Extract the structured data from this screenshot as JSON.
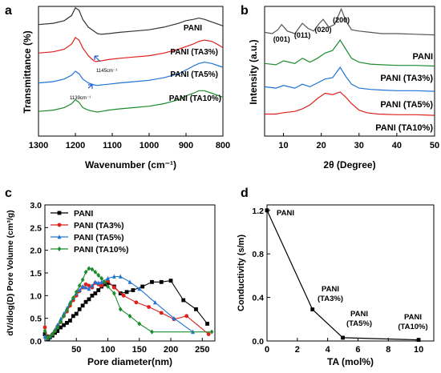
{
  "chart_data": [
    {
      "panel": "a",
      "type": "line",
      "title": "",
      "xlabel": "Wavenumber (cm⁻¹)",
      "ylabel": "Transmittance (%)",
      "xlim": [
        1300,
        800
      ],
      "x_ticks": [
        "1300",
        "1200",
        "1100",
        "1000",
        "900",
        "800"
      ],
      "series": [
        {
          "name": "PANI",
          "color": "#333333",
          "x": [
            1300,
            1260,
            1230,
            1210,
            1200,
            1190,
            1180,
            1165,
            1150,
            1140,
            1130,
            1110,
            1080,
            1040,
            1000,
            960,
            920,
            900,
            880,
            865,
            850,
            830,
            810,
            800
          ],
          "y": [
            0.86,
            0.87,
            0.89,
            0.93,
            0.99,
            0.97,
            0.9,
            0.84,
            0.81,
            0.79,
            0.785,
            0.79,
            0.8,
            0.81,
            0.82,
            0.84,
            0.87,
            0.89,
            0.9,
            0.91,
            0.9,
            0.88,
            0.86,
            0.85
          ]
        },
        {
          "name": "PANI (TA3%)",
          "color": "#e0201b",
          "x": [
            1300,
            1260,
            1230,
            1210,
            1200,
            1190,
            1180,
            1165,
            1150,
            1145,
            1130,
            1110,
            1080,
            1040,
            1000,
            960,
            920,
            900,
            880,
            865,
            850,
            830,
            810,
            800
          ],
          "y": [
            0.64,
            0.65,
            0.67,
            0.71,
            0.76,
            0.74,
            0.68,
            0.62,
            0.58,
            0.575,
            0.58,
            0.59,
            0.6,
            0.61,
            0.62,
            0.64,
            0.67,
            0.69,
            0.71,
            0.73,
            0.74,
            0.73,
            0.7,
            0.68
          ]
        },
        {
          "name": "PANI (TA5%)",
          "color": "#1e73d6",
          "x": [
            1300,
            1260,
            1230,
            1210,
            1200,
            1190,
            1180,
            1165,
            1150,
            1139,
            1130,
            1110,
            1080,
            1040,
            1000,
            960,
            920,
            900,
            880,
            865,
            850,
            830,
            810,
            800
          ],
          "y": [
            0.41,
            0.42,
            0.44,
            0.47,
            0.5,
            0.48,
            0.44,
            0.41,
            0.395,
            0.39,
            0.395,
            0.4,
            0.41,
            0.42,
            0.43,
            0.45,
            0.48,
            0.51,
            0.54,
            0.56,
            0.57,
            0.56,
            0.54,
            0.53
          ]
        },
        {
          "name": "PANI (TA10%)",
          "color": "#1e8c2e",
          "x": [
            1300,
            1260,
            1230,
            1210,
            1200,
            1190,
            1180,
            1165,
            1150,
            1140,
            1130,
            1110,
            1080,
            1040,
            1000,
            960,
            920,
            900,
            880,
            865,
            850,
            830,
            810,
            800
          ],
          "y": [
            0.19,
            0.2,
            0.22,
            0.25,
            0.28,
            0.26,
            0.22,
            0.2,
            0.19,
            0.185,
            0.19,
            0.2,
            0.21,
            0.22,
            0.23,
            0.25,
            0.28,
            0.31,
            0.33,
            0.35,
            0.35,
            0.33,
            0.31,
            0.3
          ]
        }
      ],
      "series_labels": [
        "PANI",
        "PANI (TA3%)",
        "PANI (TA5%)",
        "PANI (TA10%)"
      ],
      "annotations": [
        {
          "text": "1145cm⁻¹",
          "x": 1145,
          "y": 0.54
        },
        {
          "text": "1139cm⁻¹",
          "x": 1139,
          "y": 0.33
        }
      ]
    },
    {
      "panel": "b",
      "type": "line",
      "title": "",
      "xlabel": "2θ (Degree)",
      "ylabel": "Intensity (a.u.)",
      "xlim": [
        5,
        50
      ],
      "x_ticks": [
        "10",
        "20",
        "30",
        "40",
        "50"
      ],
      "peak_labels": [
        {
          "text": "(001)",
          "x": 9.5
        },
        {
          "text": "(011)",
          "x": 15
        },
        {
          "text": "(020)",
          "x": 20.5
        },
        {
          "text": "(200)",
          "x": 25.3
        }
      ],
      "series": [
        {
          "name": "PANI",
          "color": "#555555",
          "x": [
            5,
            7,
            8.5,
            9.5,
            11,
            13,
            15,
            16.5,
            18,
            19.5,
            20.5,
            22,
            23.5,
            25.3,
            26.5,
            28,
            30,
            33,
            36,
            40,
            45,
            50
          ],
          "y": [
            0.8,
            0.79,
            0.82,
            0.86,
            0.81,
            0.79,
            0.87,
            0.83,
            0.81,
            0.87,
            0.9,
            0.84,
            0.86,
            0.98,
            0.89,
            0.82,
            0.81,
            0.8,
            0.79,
            0.79,
            0.785,
            0.78
          ]
        },
        {
          "name": "PANI (TA3%)",
          "color": "#1e8c2e",
          "x": [
            5,
            8,
            10,
            13,
            15,
            17,
            19,
            21,
            23,
            25,
            26.5,
            28,
            30,
            33,
            36,
            40,
            45,
            50
          ],
          "y": [
            0.56,
            0.55,
            0.58,
            0.56,
            0.6,
            0.57,
            0.6,
            0.64,
            0.66,
            0.74,
            0.67,
            0.6,
            0.57,
            0.555,
            0.55,
            0.545,
            0.545,
            0.54
          ]
        },
        {
          "name": "PANI (TA5%)",
          "color": "#1e73d6",
          "x": [
            5,
            8,
            10,
            13,
            15,
            17,
            19,
            21,
            23,
            25,
            26.5,
            28,
            30,
            33,
            36,
            40,
            45,
            50
          ],
          "y": [
            0.38,
            0.37,
            0.39,
            0.37,
            0.4,
            0.38,
            0.41,
            0.44,
            0.45,
            0.53,
            0.46,
            0.4,
            0.37,
            0.36,
            0.355,
            0.35,
            0.35,
            0.345
          ]
        },
        {
          "name": "PANI (TA10%)",
          "color": "#e0201b",
          "x": [
            5,
            8,
            10,
            13,
            15,
            17,
            19,
            21,
            23,
            25,
            26.5,
            28,
            30,
            32,
            35,
            40,
            45,
            50
          ],
          "y": [
            0.17,
            0.17,
            0.18,
            0.19,
            0.21,
            0.24,
            0.29,
            0.33,
            0.32,
            0.34,
            0.3,
            0.25,
            0.2,
            0.18,
            0.17,
            0.165,
            0.165,
            0.16
          ]
        }
      ],
      "series_labels": [
        "PANI",
        "PANI (TA3%)",
        "PANI (TA5%)",
        "PANI (TA10%)"
      ]
    },
    {
      "panel": "c",
      "type": "line",
      "title": "",
      "xlabel": "Pore diameter(nm)",
      "ylabel": "dV/dlog(D) Pore Volume (cm³/g)",
      "xlim": [
        0,
        270
      ],
      "ylim": [
        0,
        3.0
      ],
      "x_ticks": [
        "50",
        "100",
        "150",
        "200",
        "250"
      ],
      "y_ticks": [
        "0.0",
        "0.5",
        "1.0",
        "1.5",
        "2.0",
        "2.5",
        "3.0"
      ],
      "legend": "top-left",
      "series": [
        {
          "name": "PANI",
          "color": "#000000",
          "marker": "square",
          "x": [
            0,
            3,
            5,
            8,
            12,
            16,
            20,
            25,
            30,
            35,
            40,
            45,
            50,
            55,
            60,
            65,
            70,
            75,
            80,
            85,
            90,
            95,
            100,
            110,
            120,
            130,
            140,
            155,
            170,
            185,
            200,
            220,
            240,
            258
          ],
          "y": [
            0.15,
            0.1,
            0.05,
            0.08,
            0.12,
            0.18,
            0.22,
            0.3,
            0.35,
            0.4,
            0.45,
            0.55,
            0.6,
            0.7,
            0.78,
            0.86,
            0.92,
            1.0,
            1.05,
            1.12,
            1.2,
            1.25,
            1.28,
            1.2,
            1.05,
            1.08,
            1.12,
            1.2,
            1.3,
            1.3,
            1.33,
            0.9,
            0.7,
            0.38
          ]
        },
        {
          "name": "PANI (TA3%)",
          "color": "#e0201b",
          "marker": "circle",
          "x": [
            0,
            4,
            8,
            12,
            16,
            20,
            25,
            30,
            35,
            40,
            45,
            50,
            55,
            60,
            65,
            70,
            75,
            80,
            85,
            90,
            100,
            110,
            125,
            145,
            165,
            185,
            205,
            225,
            260
          ],
          "y": [
            0.3,
            0.08,
            0.1,
            0.15,
            0.22,
            0.32,
            0.42,
            0.55,
            0.65,
            0.78,
            0.9,
            1.0,
            1.1,
            1.18,
            1.25,
            1.22,
            1.18,
            1.28,
            1.25,
            1.22,
            1.32,
            1.18,
            1.0,
            0.85,
            0.75,
            0.62,
            0.48,
            0.55,
            0.15
          ]
        },
        {
          "name": "PANI (TA5%)",
          "color": "#1e73d6",
          "marker": "triangle",
          "x": [
            0,
            4,
            8,
            12,
            16,
            20,
            25,
            30,
            35,
            40,
            45,
            50,
            55,
            60,
            65,
            70,
            75,
            80,
            85,
            90,
            100,
            110,
            120,
            135,
            150,
            175,
            205,
            235
          ],
          "y": [
            0.1,
            0.06,
            0.1,
            0.16,
            0.25,
            0.35,
            0.48,
            0.6,
            0.72,
            0.85,
            0.95,
            1.05,
            1.12,
            1.2,
            1.18,
            1.15,
            1.22,
            1.3,
            1.28,
            1.3,
            1.38,
            1.42,
            1.42,
            1.3,
            1.15,
            0.85,
            0.5,
            0.2
          ]
        },
        {
          "name": "PANI (TA10%)",
          "color": "#1e8c2e",
          "marker": "diamond",
          "x": [
            0,
            4,
            8,
            12,
            16,
            20,
            25,
            30,
            35,
            40,
            45,
            50,
            55,
            60,
            65,
            70,
            75,
            80,
            85,
            90,
            95,
            100,
            110,
            120,
            135,
            150,
            170,
            265
          ],
          "y": [
            0.22,
            0.06,
            0.1,
            0.15,
            0.22,
            0.3,
            0.42,
            0.55,
            0.68,
            0.82,
            0.95,
            1.08,
            1.22,
            1.35,
            1.52,
            1.6,
            1.58,
            1.52,
            1.45,
            1.38,
            1.3,
            1.2,
            1.05,
            0.7,
            0.55,
            0.38,
            0.2,
            0.2
          ]
        }
      ]
    },
    {
      "panel": "d",
      "type": "line",
      "title": "",
      "xlabel": "TA (mol%)",
      "ylabel": "Conductivity (s/m)",
      "xlim": [
        0,
        11
      ],
      "ylim": [
        0,
        1.25
      ],
      "x_ticks": [
        "0",
        "2",
        "4",
        "6",
        "8",
        "10"
      ],
      "y_ticks": [
        "0.0",
        "0.4",
        "0.8",
        "1.2"
      ],
      "series": [
        {
          "name": "",
          "color": "#000000",
          "marker": "square",
          "x": [
            0,
            3,
            5,
            10
          ],
          "y": [
            1.2,
            0.29,
            0.03,
            0.01
          ]
        }
      ],
      "point_labels": [
        {
          "lines": [
            "PANI"
          ],
          "x": 0
        },
        {
          "lines": [
            "PANI",
            "(TA3%)"
          ],
          "x": 3
        },
        {
          "lines": [
            "PANI",
            "(TA5%)"
          ],
          "x": 5
        },
        {
          "lines": [
            "PANI",
            "(TA10%)"
          ],
          "x": 10
        }
      ]
    }
  ],
  "panel_letters": [
    "a",
    "b",
    "c",
    "d"
  ]
}
